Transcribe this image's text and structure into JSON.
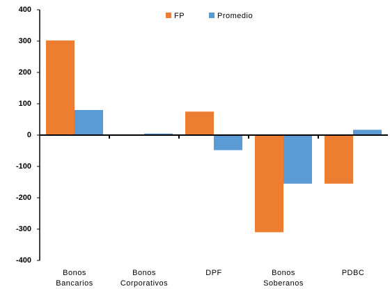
{
  "chart_data": {
    "type": "bar",
    "categories": [
      "Bonos Bancarios",
      "Bonos Corporativos",
      "DPF",
      "Bonos Soberanos",
      "PDBC"
    ],
    "series": [
      {
        "name": "FP",
        "color": "#ED7D31",
        "values": [
          302,
          -2,
          75,
          -310,
          -155
        ]
      },
      {
        "name": "Promedio",
        "color": "#5B9BD5",
        "values": [
          80,
          5,
          -48,
          -155,
          17
        ]
      }
    ],
    "ylim": [
      -400,
      400
    ],
    "yticks": [
      -400,
      -300,
      -200,
      -100,
      0,
      100,
      200,
      300,
      400
    ],
    "grid": false,
    "legend": "top"
  }
}
